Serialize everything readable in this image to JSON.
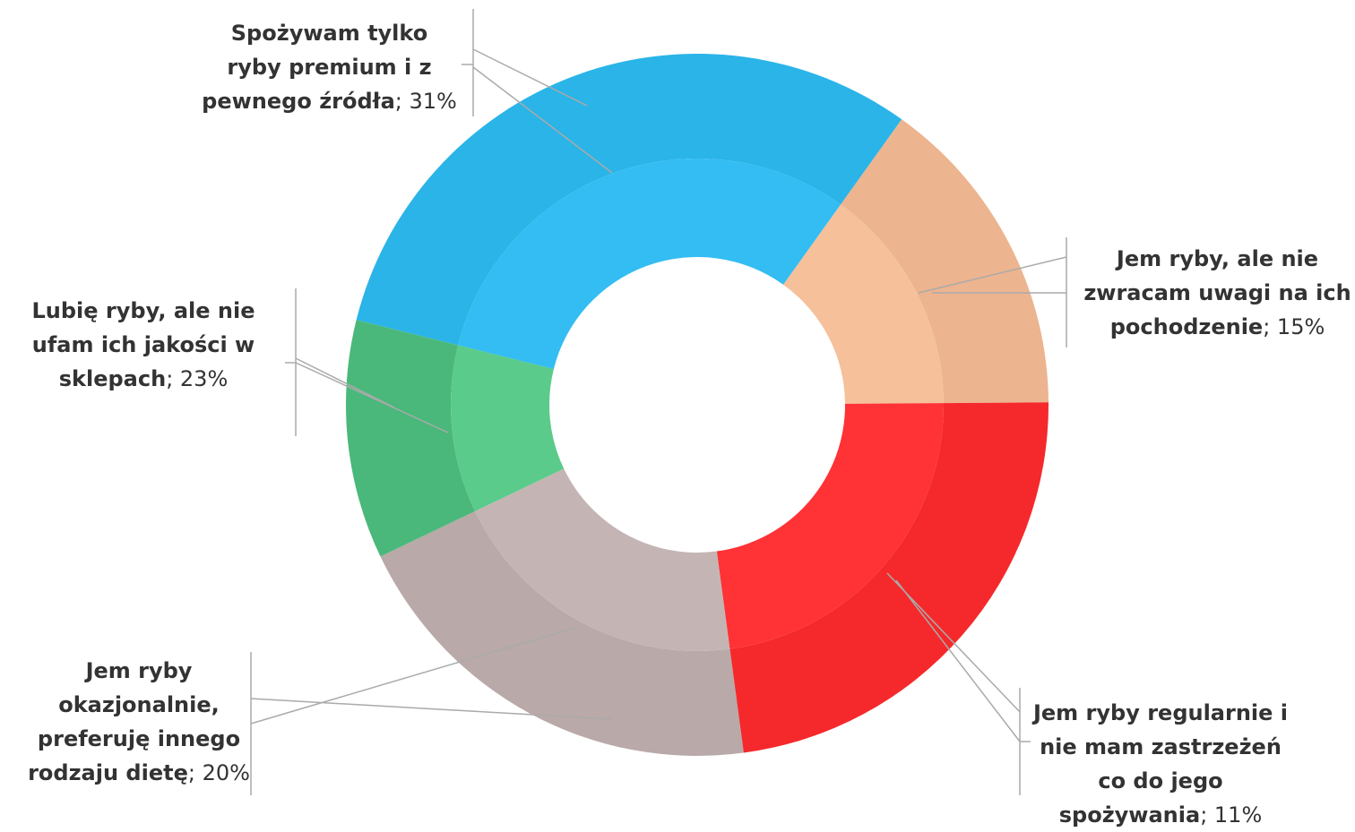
{
  "chart_data": {
    "type": "donut",
    "start_angle": -76,
    "categories": [
      "Spożywam tylko ryby premium i z pewnego źródła",
      "Jem ryby, ale nie zwracam uwagi na ich pochodzenie",
      "Lubię ryby, ale nie ufam ich jakości w sklepach",
      "Jem ryby okazjonalnie, preferuję innego rodzaju dietę",
      "Jem ryby regularnie i nie mam zastrzeżeń co do jego spożywania"
    ],
    "values": [
      31,
      15,
      23,
      20,
      11
    ],
    "value_labels": [
      "31%",
      "15%",
      "23%",
      "20%",
      "11%"
    ],
    "colors": [
      "#33bdf2",
      "#f5c09a",
      "#ff3236",
      "#c4b5b4",
      "#5acb8a"
    ],
    "outer_colors": [
      "#2ab4e8",
      "#ecb48f",
      "#f5292c",
      "#b9a9a8",
      "#4ab87a"
    ]
  }
}
